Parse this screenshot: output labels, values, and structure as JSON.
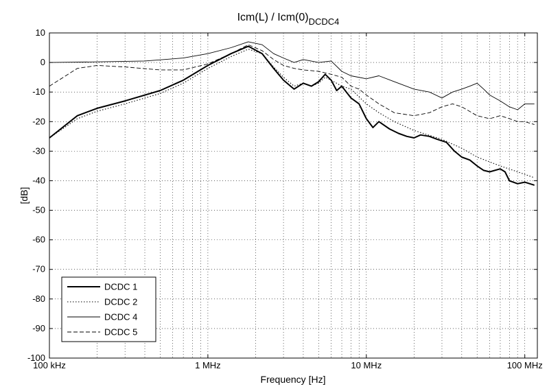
{
  "chart_data": {
    "type": "line",
    "title_main": "Icm(L) / Icm(0)",
    "title_sub": "DCDC4",
    "xlabel": "Frequency [Hz]",
    "ylabel": "[dB]",
    "x_scale": "log",
    "xlim": [
      100000,
      120000000
    ],
    "ylim": [
      -100,
      10
    ],
    "grid": true,
    "legend_position": "bottom-left",
    "x_ticks": [
      {
        "value": 100000,
        "label": "100 kHz"
      },
      {
        "value": 1000000,
        "label": "1 MHz"
      },
      {
        "value": 10000000,
        "label": "10 MHz"
      },
      {
        "value": 100000000,
        "label": "100 MHz"
      }
    ],
    "y_ticks": [
      {
        "value": 10,
        "label": "10"
      },
      {
        "value": 0,
        "label": "0"
      },
      {
        "value": -10,
        "label": "-10"
      },
      {
        "value": -20,
        "label": "-20"
      },
      {
        "value": -30,
        "label": "-30"
      },
      {
        "value": -40,
        "label": "-40"
      },
      {
        "value": -50,
        "label": "-50"
      },
      {
        "value": -60,
        "label": "-60"
      },
      {
        "value": -70,
        "label": "-70"
      },
      {
        "value": -80,
        "label": "-80"
      },
      {
        "value": -90,
        "label": "-90"
      },
      {
        "value": -100,
        "label": "-100"
      }
    ],
    "series": [
      {
        "name": "DCDC 1",
        "style": "solid-thick",
        "points": [
          [
            100000,
            -25.5
          ],
          [
            150000,
            -18
          ],
          [
            200000,
            -15.5
          ],
          [
            300000,
            -13
          ],
          [
            500000,
            -9.5
          ],
          [
            700000,
            -6
          ],
          [
            1000000,
            -1
          ],
          [
            1400000,
            3
          ],
          [
            1800000,
            5.5
          ],
          [
            2200000,
            3
          ],
          [
            2600000,
            -2
          ],
          [
            3000000,
            -6
          ],
          [
            3500000,
            -9
          ],
          [
            4000000,
            -7
          ],
          [
            4500000,
            -8
          ],
          [
            5000000,
            -6.5
          ],
          [
            5500000,
            -4
          ],
          [
            6000000,
            -6
          ],
          [
            6500000,
            -9.5
          ],
          [
            7000000,
            -8
          ],
          [
            8000000,
            -12
          ],
          [
            9000000,
            -14
          ],
          [
            10000000,
            -19
          ],
          [
            11000000,
            -22
          ],
          [
            12000000,
            -20
          ],
          [
            14000000,
            -22.5
          ],
          [
            16000000,
            -24
          ],
          [
            18000000,
            -25
          ],
          [
            20000000,
            -25.5
          ],
          [
            22000000,
            -24.5
          ],
          [
            25000000,
            -25
          ],
          [
            28000000,
            -26
          ],
          [
            32000000,
            -27
          ],
          [
            36000000,
            -30
          ],
          [
            40000000,
            -32
          ],
          [
            45000000,
            -33
          ],
          [
            50000000,
            -35
          ],
          [
            55000000,
            -36.5
          ],
          [
            60000000,
            -37
          ],
          [
            70000000,
            -36
          ],
          [
            75000000,
            -37
          ],
          [
            80000000,
            -40
          ],
          [
            90000000,
            -41
          ],
          [
            100000000,
            -40.5
          ],
          [
            115000000,
            -41.5
          ]
        ]
      },
      {
        "name": "DCDC 2",
        "style": "dotted",
        "points": [
          [
            100000,
            -25.5
          ],
          [
            150000,
            -19
          ],
          [
            200000,
            -16.5
          ],
          [
            300000,
            -14
          ],
          [
            500000,
            -10.5
          ],
          [
            700000,
            -7
          ],
          [
            1000000,
            -2
          ],
          [
            1400000,
            2
          ],
          [
            1800000,
            4.5
          ],
          [
            2200000,
            3
          ],
          [
            2600000,
            -1.5
          ],
          [
            3000000,
            -5
          ],
          [
            3500000,
            -8
          ],
          [
            4000000,
            -7
          ],
          [
            4500000,
            -8
          ],
          [
            5000000,
            -7
          ],
          [
            5500000,
            -5
          ],
          [
            6000000,
            -6
          ],
          [
            7000000,
            -8
          ],
          [
            8000000,
            -9
          ],
          [
            10000000,
            -14
          ],
          [
            12000000,
            -17
          ],
          [
            15000000,
            -20
          ],
          [
            20000000,
            -23
          ],
          [
            30000000,
            -26
          ],
          [
            40000000,
            -29
          ],
          [
            50000000,
            -32
          ],
          [
            70000000,
            -35
          ],
          [
            90000000,
            -37
          ],
          [
            115000000,
            -39
          ]
        ]
      },
      {
        "name": "DCDC 4",
        "style": "solid-thin",
        "points": [
          [
            100000,
            0
          ],
          [
            200000,
            0.2
          ],
          [
            400000,
            0.5
          ],
          [
            700000,
            1.5
          ],
          [
            1000000,
            3
          ],
          [
            1400000,
            5
          ],
          [
            1800000,
            7
          ],
          [
            2200000,
            6
          ],
          [
            2600000,
            3
          ],
          [
            3000000,
            1.5
          ],
          [
            3500000,
            0
          ],
          [
            4000000,
            1
          ],
          [
            5000000,
            0
          ],
          [
            6000000,
            0.5
          ],
          [
            7000000,
            -3
          ],
          [
            8000000,
            -4.5
          ],
          [
            10000000,
            -5.5
          ],
          [
            12000000,
            -4.5
          ],
          [
            15000000,
            -6.5
          ],
          [
            20000000,
            -9
          ],
          [
            25000000,
            -10
          ],
          [
            30000000,
            -12
          ],
          [
            35000000,
            -10
          ],
          [
            40000000,
            -9
          ],
          [
            45000000,
            -8
          ],
          [
            50000000,
            -7
          ],
          [
            55000000,
            -9
          ],
          [
            60000000,
            -11
          ],
          [
            70000000,
            -13
          ],
          [
            80000000,
            -15
          ],
          [
            90000000,
            -16
          ],
          [
            100000000,
            -14
          ],
          [
            115000000,
            -14
          ]
        ]
      },
      {
        "name": "DCDC 5",
        "style": "dashed",
        "points": [
          [
            100000,
            -8
          ],
          [
            150000,
            -2
          ],
          [
            200000,
            -1
          ],
          [
            300000,
            -1.5
          ],
          [
            500000,
            -2.5
          ],
          [
            700000,
            -2.5
          ],
          [
            1000000,
            -0.5
          ],
          [
            1400000,
            3
          ],
          [
            1800000,
            6
          ],
          [
            2200000,
            4
          ],
          [
            2600000,
            1
          ],
          [
            3000000,
            -1
          ],
          [
            3500000,
            -2
          ],
          [
            4000000,
            -2.5
          ],
          [
            5000000,
            -3
          ],
          [
            6000000,
            -4
          ],
          [
            7000000,
            -5
          ],
          [
            8000000,
            -8
          ],
          [
            9000000,
            -9
          ],
          [
            10000000,
            -11
          ],
          [
            12000000,
            -14
          ],
          [
            15000000,
            -17
          ],
          [
            20000000,
            -18
          ],
          [
            25000000,
            -17
          ],
          [
            30000000,
            -15
          ],
          [
            35000000,
            -14
          ],
          [
            40000000,
            -15
          ],
          [
            50000000,
            -18
          ],
          [
            60000000,
            -19
          ],
          [
            70000000,
            -18
          ],
          [
            80000000,
            -19
          ],
          [
            90000000,
            -20
          ],
          [
            100000000,
            -20
          ],
          [
            115000000,
            -21
          ]
        ]
      }
    ]
  }
}
